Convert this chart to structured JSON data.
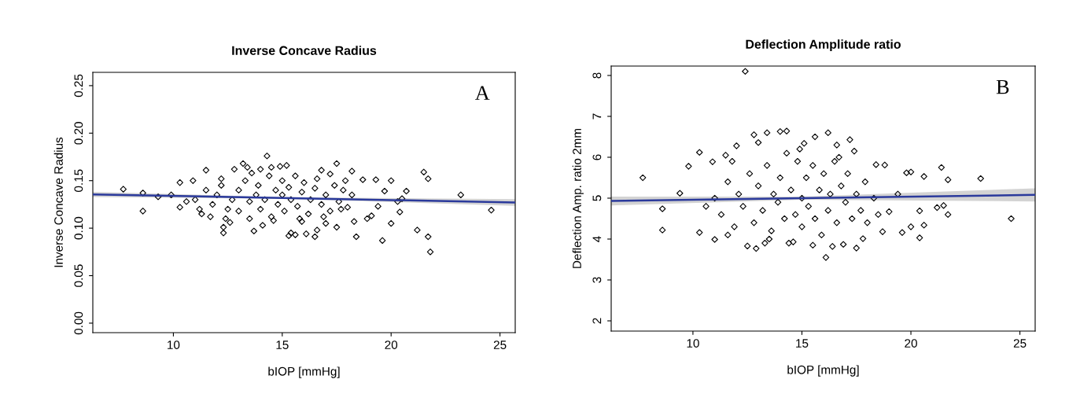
{
  "chart_data": [
    {
      "type": "scatter",
      "title": "Inverse Concave Radius",
      "xlabel": "bIOP [mmHg]",
      "ylabel": "Inverse Concave Radius",
      "annotations": [
        "A"
      ],
      "xlim": [
        6.3,
        25.7
      ],
      "ylim": [
        -0.01,
        0.264
      ],
      "xticks": [
        10,
        15,
        20,
        25
      ],
      "yticks": [
        {
          "value": 0,
          "label": "0.00"
        },
        {
          "value": 0.05,
          "label": "0.05"
        },
        {
          "value": 0.1,
          "label": "0.10"
        },
        {
          "value": 0.15,
          "label": "0.15"
        },
        {
          "value": 0.2,
          "label": "0.20"
        },
        {
          "value": 0.25,
          "label": "0.25"
        }
      ],
      "series": [
        {
          "color": "#000000",
          "marker": "diamond",
          "x": [
            7.7,
            8.6,
            8.6,
            9.3,
            9.9,
            10.3,
            10.3,
            10.9,
            11.5,
            11.3,
            11.7,
            12.2,
            12.3,
            12.3,
            12.6,
            12.8,
            13.2,
            13.4,
            13.5,
            13.7,
            14.0,
            14.3,
            14.1,
            14.5,
            14.9,
            15.2,
            15.3,
            15.4,
            15.6,
            15.9,
            16.1,
            16.5,
            16.6,
            16.8,
            17.0,
            17.2,
            17.5,
            17.5,
            17.9,
            18.2,
            18.4,
            18.3,
            18.7,
            18.9,
            19.1,
            19.3,
            19.4,
            19.6,
            19.7,
            20.0,
            20.0,
            20.3,
            20.4,
            20.5,
            20.7,
            21.2,
            21.5,
            21.7,
            21.7,
            21.8,
            23.2,
            24.6,
            11,
            11.5,
            11.8,
            12,
            12.2,
            12.5,
            12.7,
            13,
            13,
            13.3,
            13.5,
            13.8,
            13.9,
            14,
            14.2,
            14.4,
            14.5,
            14.7,
            14.8,
            15,
            15,
            15.1,
            15.3,
            15.4,
            15.6,
            15.7,
            15.9,
            16,
            16.2,
            16.3,
            16.5,
            16.6,
            16.8,
            17,
            17.2,
            17.4,
            17.6,
            17.8,
            18,
            18.2,
            10.6,
            11.2,
            12.4,
            13.6,
            14.6,
            15.8,
            16.9,
            17.7
          ],
          "values": [
            0.141,
            0.137,
            0.118,
            0.133,
            0.135,
            0.122,
            0.148,
            0.15,
            0.161,
            0.115,
            0.112,
            0.152,
            0.101,
            0.095,
            0.106,
            0.162,
            0.168,
            0.164,
            0.11,
            0.097,
            0.162,
            0.176,
            0.103,
            0.164,
            0.165,
            0.166,
            0.092,
            0.095,
            0.093,
            0.107,
            0.094,
            0.091,
            0.098,
            0.161,
            0.105,
            0.157,
            0.101,
            0.168,
            0.15,
            0.16,
            0.091,
            0.107,
            0.151,
            0.11,
            0.113,
            0.151,
            0.123,
            0.087,
            0.139,
            0.15,
            0.105,
            0.128,
            0.117,
            0.131,
            0.139,
            0.098,
            0.159,
            0.152,
            0.091,
            0.075,
            0.135,
            0.119,
            0.13,
            0.14,
            0.125,
            0.135,
            0.145,
            0.12,
            0.13,
            0.14,
            0.118,
            0.15,
            0.128,
            0.135,
            0.145,
            0.12,
            0.13,
            0.155,
            0.112,
            0.14,
            0.125,
            0.135,
            0.15,
            0.118,
            0.143,
            0.13,
            0.155,
            0.123,
            0.138,
            0.148,
            0.115,
            0.13,
            0.142,
            0.152,
            0.125,
            0.135,
            0.118,
            0.145,
            0.128,
            0.14,
            0.122,
            0.135,
            0.128,
            0.12,
            0.11,
            0.158,
            0.108,
            0.11,
            0.112,
            0.12
          ]
        },
        {
          "type": "line",
          "color": "#2b3a9c",
          "marker": "none",
          "x": [
            6.3,
            15,
            25.7
          ],
          "values": [
            0.1355,
            0.1318,
            0.127
          ],
          "lower": [
            0.1328,
            0.131,
            0.1235
          ],
          "upper": [
            0.1382,
            0.1326,
            0.1305
          ]
        }
      ]
    },
    {
      "type": "scatter",
      "title": "Deflection Amplitude ratio",
      "xlabel": "bIOP [mmHg]",
      "ylabel": "Deflection Amp. ratio 2mm",
      "annotations": [
        "B"
      ],
      "xlim": [
        6.25,
        25.7
      ],
      "ylim": [
        1.75,
        8.23
      ],
      "xticks": [
        10,
        15,
        20,
        25
      ],
      "yticks": [
        2,
        3,
        4,
        5,
        6,
        7,
        8
      ],
      "series": [
        {
          "color": "#000000",
          "marker": "diamond",
          "x": [
            7.7,
            8.6,
            8.6,
            9.4,
            9.8,
            10.3,
            10.3,
            10.9,
            11.0,
            11.5,
            11.6,
            12.0,
            12.4,
            12.5,
            12.8,
            12.9,
            13.0,
            13.4,
            13.5,
            14.0,
            14.3,
            14.4,
            14.6,
            15.1,
            15.5,
            15.6,
            16.1,
            16.2,
            16.4,
            16.6,
            16.9,
            17.2,
            17.5,
            17.4,
            17.8,
            18.4,
            18.7,
            18.8,
            19.0,
            19.4,
            19.6,
            19.8,
            20.0,
            20.0,
            20.4,
            20.4,
            20.6,
            20.6,
            21.2,
            21.4,
            21.5,
            21.7,
            21.7,
            23.2,
            24.6,
            11,
            11.3,
            11.6,
            11.9,
            12.1,
            12.3,
            12.6,
            12.8,
            13,
            13.2,
            13.4,
            13.6,
            13.7,
            13.9,
            14,
            14.2,
            14.3,
            14.5,
            14.7,
            14.8,
            15,
            15,
            15.2,
            15.3,
            15.5,
            15.6,
            15.8,
            15.9,
            16,
            16.2,
            16.3,
            16.5,
            16.6,
            16.8,
            17,
            17.1,
            17.3,
            17.5,
            17.7,
            17.9,
            18,
            18.3,
            18.5,
            10.6,
            11.8,
            13.3,
            14.9,
            16.7
          ],
          "values": [
            5.5,
            4.74,
            4.22,
            5.12,
            5.78,
            6.12,
            4.16,
            5.89,
            3.99,
            6.05,
            4.1,
            6.28,
            8.1,
            3.83,
            6.55,
            3.77,
            6.36,
            6.6,
            4.0,
            6.63,
            6.64,
            3.9,
            3.93,
            6.34,
            3.85,
            6.5,
            3.55,
            6.6,
            3.82,
            6.3,
            3.87,
            6.43,
            3.78,
            6.15,
            4.01,
            5.82,
            4.18,
            5.81,
            4.67,
            5.1,
            4.16,
            5.62,
            4.3,
            5.64,
            4.69,
            4.03,
            5.53,
            4.34,
            4.77,
            5.75,
            4.82,
            4.6,
            5.45,
            5.48,
            4.5,
            5.0,
            4.6,
            5.4,
            4.3,
            5.1,
            4.8,
            5.6,
            4.4,
            5.3,
            4.7,
            5.8,
            4.2,
            5.1,
            4.9,
            5.5,
            4.5,
            6.1,
            5.2,
            4.6,
            5.9,
            5.0,
            4.3,
            5.5,
            4.8,
            5.8,
            4.5,
            5.2,
            4.1,
            5.6,
            4.7,
            5.1,
            5.9,
            4.4,
            5.3,
            4.9,
            5.6,
            4.5,
            5.1,
            4.7,
            5.4,
            4.4,
            5.0,
            4.6,
            4.8,
            5.9,
            3.9,
            6.2,
            6.0
          ]
        },
        {
          "type": "line",
          "color": "#2b3a9c",
          "marker": "none",
          "x": [
            6.25,
            15,
            25.7
          ],
          "values": [
            4.93,
            5.0,
            5.08
          ],
          "lower": [
            4.82,
            4.96,
            4.92
          ],
          "upper": [
            5.04,
            5.04,
            5.24
          ]
        }
      ]
    }
  ]
}
